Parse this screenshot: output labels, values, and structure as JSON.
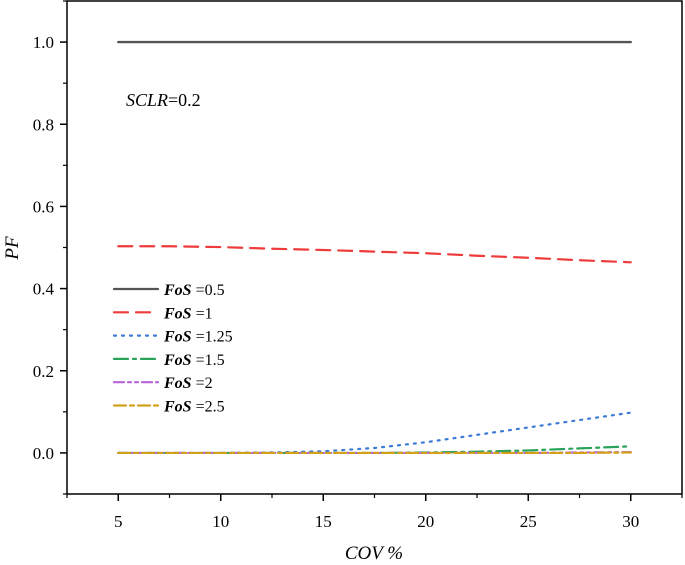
{
  "chart_data": {
    "type": "line",
    "xlabel": "COV %",
    "ylabel": "PF",
    "xlim": [
      2.5,
      32.5
    ],
    "ylim": [
      -0.1,
      1.1
    ],
    "xticks": [
      5,
      10,
      15,
      20,
      25,
      30
    ],
    "yticks": [
      0.0,
      0.2,
      0.4,
      0.6,
      0.8,
      1.0
    ],
    "x_tick_labels": [
      "5",
      "10",
      "15",
      "20",
      "25",
      "30"
    ],
    "y_tick_labels": [
      "0.0",
      "0.2",
      "0.4",
      "0.6",
      "0.8",
      "1.0"
    ],
    "annotation": {
      "italic": "SCLR",
      "rest": "=0.2"
    },
    "legend_position": "middle-left",
    "grid": false,
    "x": [
      5,
      7.5,
      10,
      12.5,
      15,
      17.5,
      20,
      22.5,
      25,
      27.5,
      30
    ],
    "series": [
      {
        "name_italic": "FoS",
        "name_rest": " =0.5",
        "color": "#555555",
        "dash": "solid",
        "values": [
          1.0,
          1.0,
          1.0,
          1.0,
          1.0,
          1.0,
          1.0,
          1.0,
          1.0,
          1.0,
          1.0
        ]
      },
      {
        "name_italic": "FoS",
        "name_rest": " =1",
        "color": "#ee3b3b",
        "dash": "dash",
        "values": [
          0.503,
          0.503,
          0.501,
          0.497,
          0.494,
          0.49,
          0.486,
          0.48,
          0.475,
          0.469,
          0.464
        ]
      },
      {
        "name_italic": "FoS",
        "name_rest": " =1.25",
        "color": "#3a7bd5",
        "dash": "dot",
        "values": [
          0.0,
          0.0,
          0.0,
          0.001,
          0.004,
          0.012,
          0.026,
          0.044,
          0.062,
          0.08,
          0.098
        ]
      },
      {
        "name_italic": "FoS",
        "name_rest": " =1.5",
        "color": "#2aa35a",
        "dash": "dashdot",
        "values": [
          0.0,
          0.0,
          0.0,
          0.0,
          0.0,
          0.0,
          0.001,
          0.003,
          0.006,
          0.011,
          0.016
        ]
      },
      {
        "name_italic": "FoS",
        "name_rest": " =2",
        "color": "#b565d8",
        "dash": "dashdotdot",
        "values": [
          0.0,
          0.0,
          0.0,
          0.0,
          0.0,
          0.0,
          0.0,
          0.0,
          0.0,
          0.001,
          0.002
        ]
      },
      {
        "name_italic": "FoS",
        "name_rest": " =2.5",
        "color": "#d4a017",
        "dash": "longdashdot",
        "values": [
          0.0,
          0.0,
          0.0,
          0.0,
          0.0,
          0.0,
          0.0,
          0.0,
          0.0,
          0.0,
          0.001
        ]
      }
    ]
  }
}
